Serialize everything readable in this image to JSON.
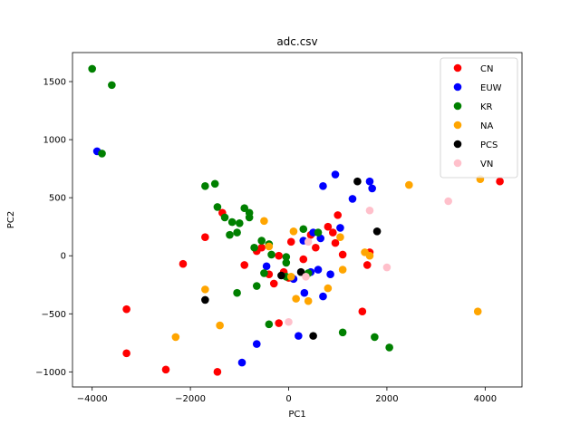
{
  "chart_data": {
    "type": "scatter",
    "title": "adc.csv",
    "xlabel": "PC1",
    "ylabel": "PC2",
    "xlim": [
      -4400,
      4750
    ],
    "ylim": [
      -1130,
      1750
    ],
    "xticks": [
      -4000,
      -2000,
      0,
      2000,
      4000
    ],
    "yticks": [
      -1000,
      -500,
      0,
      500,
      1000,
      1500
    ],
    "grid": false,
    "legend_position": "top-right",
    "series": [
      {
        "name": "CN",
        "color": "#ff0000",
        "points": [
          [
            -3300,
            -460
          ],
          [
            -3300,
            -840
          ],
          [
            -2500,
            -980
          ],
          [
            -2150,
            -70
          ],
          [
            -1700,
            160
          ],
          [
            -1450,
            -1000
          ],
          [
            -1350,
            370
          ],
          [
            -900,
            -80
          ],
          [
            -650,
            40
          ],
          [
            -550,
            70
          ],
          [
            -400,
            -160
          ],
          [
            -300,
            -240
          ],
          [
            -200,
            0
          ],
          [
            -200,
            -580
          ],
          [
            -100,
            -140
          ],
          [
            0,
            -190
          ],
          [
            50,
            120
          ],
          [
            300,
            -30
          ],
          [
            450,
            180
          ],
          [
            550,
            70
          ],
          [
            800,
            250
          ],
          [
            900,
            200
          ],
          [
            950,
            110
          ],
          [
            1000,
            350
          ],
          [
            1100,
            10
          ],
          [
            1500,
            -480
          ],
          [
            1600,
            -80
          ],
          [
            1650,
            30
          ],
          [
            4300,
            640
          ]
        ]
      },
      {
        "name": "EUW",
        "color": "#0000ff",
        "points": [
          [
            -3900,
            900
          ],
          [
            -950,
            -920
          ],
          [
            -650,
            -760
          ],
          [
            -450,
            -90
          ],
          [
            100,
            -200
          ],
          [
            200,
            -690
          ],
          [
            300,
            130
          ],
          [
            320,
            -320
          ],
          [
            450,
            -140
          ],
          [
            500,
            200
          ],
          [
            600,
            -120
          ],
          [
            650,
            150
          ],
          [
            700,
            -350
          ],
          [
            700,
            600
          ],
          [
            850,
            -160
          ],
          [
            950,
            700
          ],
          [
            1050,
            240
          ],
          [
            1300,
            490
          ],
          [
            1650,
            640
          ],
          [
            1700,
            580
          ]
        ]
      },
      {
        "name": "KR",
        "color": "#008000",
        "points": [
          [
            -4000,
            1610
          ],
          [
            -3600,
            1470
          ],
          [
            -3800,
            880
          ],
          [
            -1700,
            600
          ],
          [
            -1500,
            620
          ],
          [
            -1450,
            420
          ],
          [
            -1300,
            330
          ],
          [
            -1200,
            180
          ],
          [
            -1150,
            290
          ],
          [
            -1050,
            200
          ],
          [
            -1000,
            280
          ],
          [
            -1050,
            -320
          ],
          [
            -900,
            410
          ],
          [
            -800,
            330
          ],
          [
            -800,
            370
          ],
          [
            -700,
            70
          ],
          [
            -650,
            -260
          ],
          [
            -550,
            130
          ],
          [
            -500,
            -150
          ],
          [
            -400,
            100
          ],
          [
            -350,
            10
          ],
          [
            -400,
            -590
          ],
          [
            -50,
            -60
          ],
          [
            -50,
            -10
          ],
          [
            -50,
            -180
          ],
          [
            300,
            230
          ],
          [
            400,
            -150
          ],
          [
            600,
            200
          ],
          [
            1100,
            -660
          ],
          [
            1750,
            -700
          ],
          [
            2050,
            -790
          ]
        ]
      },
      {
        "name": "NA",
        "color": "#ffa500",
        "points": [
          [
            -2300,
            -700
          ],
          [
            -1700,
            -290
          ],
          [
            -1400,
            -600
          ],
          [
            -500,
            300
          ],
          [
            -400,
            80
          ],
          [
            50,
            -180
          ],
          [
            100,
            210
          ],
          [
            150,
            -370
          ],
          [
            400,
            -390
          ],
          [
            800,
            -280
          ],
          [
            1050,
            160
          ],
          [
            1100,
            -120
          ],
          [
            1550,
            30
          ],
          [
            1650,
            0
          ],
          [
            2450,
            610
          ],
          [
            3850,
            -480
          ],
          [
            3900,
            660
          ]
        ]
      },
      {
        "name": "PCS",
        "color": "#000000",
        "points": [
          [
            -1700,
            -380
          ],
          [
            -150,
            -170
          ],
          [
            250,
            -140
          ],
          [
            500,
            -690
          ],
          [
            1400,
            640
          ],
          [
            1800,
            210
          ]
        ]
      },
      {
        "name": "VN",
        "color": "#ffc0cb",
        "points": [
          [
            0,
            -570
          ],
          [
            350,
            -180
          ],
          [
            400,
            120
          ],
          [
            1650,
            390
          ],
          [
            2000,
            -100
          ],
          [
            3250,
            470
          ]
        ]
      }
    ]
  }
}
